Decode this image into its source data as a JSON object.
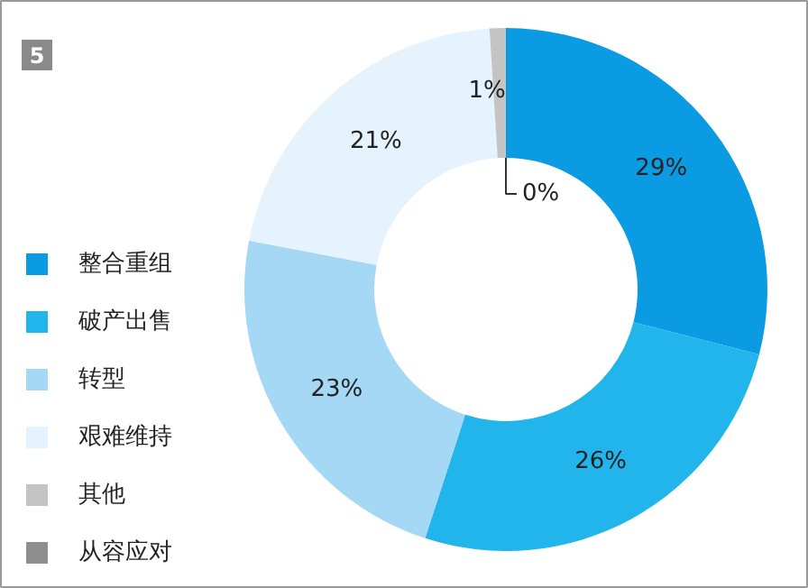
{
  "chart_data": {
    "type": "donut",
    "categories": [
      "整合重组",
      "破产出售",
      "转型",
      "艰难维持",
      "其他",
      "从容应对"
    ],
    "values": [
      29,
      26,
      23,
      21,
      1,
      0
    ],
    "colors": [
      "#0a9be3",
      "#21b5eb",
      "#a4d8f4",
      "#e4f3fd",
      "#c4c4c4",
      "#8e8e8e"
    ],
    "value_labels": [
      "29%",
      "26%",
      "23%",
      "21%",
      "1%",
      "0%"
    ],
    "legend": "left",
    "annotations": [
      "5"
    ]
  }
}
